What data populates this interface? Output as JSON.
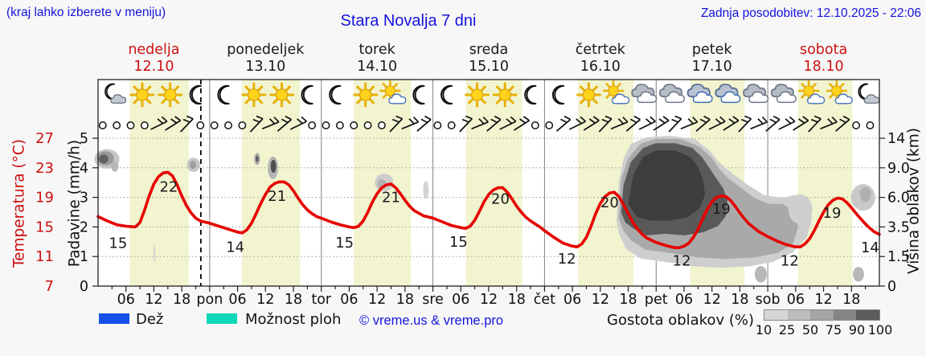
{
  "header": {
    "note": "(kraj lahko izberete v meniju)",
    "updated": "Zadnja posodobitev: 12.10.2025 - 22:06"
  },
  "colors": {
    "accent_blue": "#1414dd",
    "curve_red": "#e60000",
    "label_red": "#cc1111",
    "day_band": "#f1f4ce",
    "grid": "#999999",
    "day_line": "#848484"
  },
  "chart_data": {
    "type": "line",
    "title": "Stara Novalja 7 dni",
    "days": [
      {
        "name": "nedelja",
        "date": "12.10",
        "color": "#cc1111"
      },
      {
        "name": "ponedeljek",
        "date": "13.10",
        "color": "#1a1a1a"
      },
      {
        "name": "torek",
        "date": "14.10",
        "color": "#1a1a1a"
      },
      {
        "name": "sreda",
        "date": "15.10",
        "color": "#1a1a1a"
      },
      {
        "name": "četrtek",
        "date": "16.10",
        "color": "#1a1a1a"
      },
      {
        "name": "petek",
        "date": "17.10",
        "color": "#1a1a1a"
      },
      {
        "name": "sobota",
        "date": "18.10",
        "color": "#cc1111"
      }
    ],
    "axes": {
      "temp": {
        "label": "Temperatura (°C)",
        "ticks": [
          27,
          23,
          19,
          15,
          11,
          7
        ],
        "color": "#cc1111"
      },
      "precip": {
        "label": "Padavine (mm/h)",
        "ticks": [
          5,
          4,
          3,
          2,
          1,
          0
        ]
      },
      "cloud_height": {
        "label": "Višina oblakov (km)",
        "ticks": [
          "14",
          "9.0",
          "6.0",
          "3.5",
          "1.5",
          "0"
        ]
      },
      "hour_ticks": [
        "06",
        "12",
        "18"
      ],
      "day_abbr": [
        "pon",
        "tor",
        "sre",
        "čet",
        "pet",
        "sob"
      ]
    },
    "ylim_precip": [
      0,
      5
    ],
    "temperature_c": [
      [
        0,
        16.4
      ],
      [
        2,
        15.8
      ],
      [
        4,
        15.3
      ],
      [
        6,
        15.1
      ],
      [
        8,
        15.0
      ],
      [
        9,
        15.6
      ],
      [
        10,
        17.3
      ],
      [
        11,
        19.2
      ],
      [
        12,
        20.8
      ],
      [
        13,
        21.8
      ],
      [
        14,
        22.3
      ],
      [
        15,
        22.4
      ],
      [
        16,
        21.9
      ],
      [
        17,
        20.7
      ],
      [
        18,
        19.2
      ],
      [
        19,
        17.9
      ],
      [
        20,
        16.9
      ],
      [
        21,
        16.2
      ],
      [
        22,
        15.8
      ],
      [
        24,
        15.5
      ],
      [
        26,
        15.1
      ],
      [
        28,
        14.7
      ],
      [
        30,
        14.3
      ],
      [
        31,
        14.2
      ],
      [
        32,
        14.6
      ],
      [
        33,
        15.5
      ],
      [
        34,
        16.8
      ],
      [
        35,
        18.2
      ],
      [
        36,
        19.4
      ],
      [
        37,
        20.4
      ],
      [
        38,
        20.9
      ],
      [
        39,
        21.1
      ],
      [
        40,
        21.1
      ],
      [
        41,
        20.7
      ],
      [
        42,
        19.9
      ],
      [
        43,
        18.9
      ],
      [
        44,
        18.0
      ],
      [
        45,
        17.3
      ],
      [
        46,
        16.8
      ],
      [
        47,
        16.4
      ],
      [
        48,
        16.2
      ],
      [
        50,
        15.7
      ],
      [
        52,
        15.3
      ],
      [
        54,
        15.0
      ],
      [
        55,
        14.9
      ],
      [
        56,
        15.1
      ],
      [
        57,
        15.8
      ],
      [
        58,
        17.0
      ],
      [
        59,
        18.4
      ],
      [
        60,
        19.5
      ],
      [
        61,
        20.3
      ],
      [
        62,
        20.7
      ],
      [
        63,
        20.8
      ],
      [
        64,
        20.3
      ],
      [
        65,
        19.5
      ],
      [
        66,
        18.6
      ],
      [
        67,
        17.8
      ],
      [
        68,
        17.2
      ],
      [
        70,
        16.5
      ],
      [
        72,
        16.2
      ],
      [
        74,
        15.7
      ],
      [
        76,
        15.2
      ],
      [
        78,
        14.9
      ],
      [
        79,
        14.8
      ],
      [
        80,
        15.1
      ],
      [
        81,
        15.9
      ],
      [
        82,
        17.1
      ],
      [
        83,
        18.4
      ],
      [
        84,
        19.4
      ],
      [
        85,
        20.0
      ],
      [
        86,
        20.3
      ],
      [
        87,
        20.3
      ],
      [
        88,
        19.7
      ],
      [
        89,
        18.8
      ],
      [
        90,
        17.8
      ],
      [
        91,
        17.0
      ],
      [
        92,
        16.3
      ],
      [
        93,
        15.8
      ],
      [
        94,
        15.4
      ],
      [
        95,
        15.0
      ],
      [
        96,
        14.5
      ],
      [
        98,
        13.6
      ],
      [
        100,
        12.8
      ],
      [
        102,
        12.4
      ],
      [
        103,
        12.3
      ],
      [
        104,
        12.7
      ],
      [
        105,
        13.6
      ],
      [
        106,
        15.1
      ],
      [
        107,
        16.8
      ],
      [
        108,
        18.2
      ],
      [
        109,
        19.1
      ],
      [
        110,
        19.6
      ],
      [
        111,
        19.7
      ],
      [
        112,
        19.1
      ],
      [
        113,
        18.0
      ],
      [
        114,
        16.8
      ],
      [
        115,
        15.6
      ],
      [
        116,
        14.7
      ],
      [
        117,
        14.0
      ],
      [
        118,
        13.5
      ],
      [
        120,
        12.9
      ],
      [
        122,
        12.5
      ],
      [
        124,
        12.2
      ],
      [
        125,
        12.2
      ],
      [
        126,
        12.4
      ],
      [
        127,
        12.8
      ],
      [
        128,
        13.6
      ],
      [
        129,
        14.7
      ],
      [
        130,
        16.1
      ],
      [
        131,
        17.4
      ],
      [
        132,
        18.4
      ],
      [
        133,
        19.0
      ],
      [
        134,
        19.2
      ],
      [
        135,
        19.1
      ],
      [
        136,
        18.6
      ],
      [
        137,
        17.8
      ],
      [
        138,
        16.9
      ],
      [
        139,
        16.1
      ],
      [
        140,
        15.4
      ],
      [
        142,
        14.4
      ],
      [
        144,
        13.7
      ],
      [
        146,
        13.1
      ],
      [
        148,
        12.6
      ],
      [
        150,
        12.3
      ],
      [
        151,
        12.3
      ],
      [
        152,
        12.7
      ],
      [
        153,
        13.4
      ],
      [
        154,
        14.5
      ],
      [
        155,
        15.8
      ],
      [
        156,
        17.0
      ],
      [
        157,
        18.0
      ],
      [
        158,
        18.6
      ],
      [
        159,
        18.9
      ],
      [
        160,
        18.8
      ],
      [
        161,
        18.3
      ],
      [
        162,
        17.6
      ],
      [
        163,
        16.8
      ],
      [
        164,
        16.1
      ],
      [
        165,
        15.4
      ],
      [
        166,
        14.8
      ],
      [
        167,
        14.3
      ],
      [
        168,
        14.0
      ]
    ],
    "temp_labels": [
      [
        "15",
        4.3,
        1.45
      ],
      [
        "22",
        15.2,
        3.35
      ],
      [
        "14",
        29.5,
        1.32
      ],
      [
        "21",
        38.5,
        3.05
      ],
      [
        "15",
        53,
        1.47
      ],
      [
        "21",
        63,
        3.0
      ],
      [
        "15",
        77.5,
        1.5
      ],
      [
        "20",
        86.5,
        2.95
      ],
      [
        "12",
        100.8,
        0.92
      ],
      [
        "20",
        110,
        2.82
      ],
      [
        "12",
        125.5,
        0.86
      ],
      [
        "19",
        134,
        2.61
      ],
      [
        "12",
        148.7,
        0.86
      ],
      [
        "19",
        157.8,
        2.47
      ],
      [
        "14",
        166,
        1.3
      ]
    ],
    "icons": [
      [
        "moon-cloud",
        "sun",
        "sun",
        "moon"
      ],
      [
        "moon",
        "sun",
        "sun",
        "moon"
      ],
      [
        "moon",
        "sun",
        "sun-cloud",
        "moon"
      ],
      [
        "moon",
        "sun",
        "sun",
        "moon"
      ],
      [
        "moon",
        "sun",
        "sun-cloud",
        "clouds"
      ],
      [
        "clouds",
        "clouds-blue",
        "clouds-blue",
        "clouds"
      ],
      [
        "clouds",
        "sun-cloud",
        "sun-cloud",
        "moon-cloud"
      ]
    ],
    "wind": [
      "o",
      "o",
      "o",
      "o",
      "b",
      "b",
      "b",
      "o",
      "o",
      "o",
      "o",
      "b",
      "b",
      "b",
      "b",
      "o",
      "o",
      "o",
      "o",
      "o",
      "o",
      "b",
      "b",
      "b",
      "o",
      "o",
      "b",
      "b",
      "b",
      "b",
      "b",
      "o",
      "o",
      "b",
      "b",
      "b",
      "b",
      "b",
      "b",
      "b",
      "b",
      "b",
      "b",
      "b",
      "b",
      "b",
      "b",
      "b",
      "b",
      "b",
      "b",
      "b",
      "b",
      "b",
      "o",
      "o"
    ],
    "daylight_bands": [
      [
        6.8,
        19.5
      ],
      [
        6.9,
        19.4
      ],
      [
        7.0,
        19.3
      ],
      [
        7.1,
        19.2
      ],
      [
        7.2,
        19.1
      ],
      [
        7.3,
        19.0
      ],
      [
        6.5,
        18.2
      ]
    ],
    "update_line_hour": 22.1,
    "clouds": {
      "blobs": [
        [
          1.9,
          4.3,
          2.7,
          0.33,
          "#c6c6c6"
        ],
        [
          1.6,
          4.32,
          1.8,
          0.24,
          "#9a9a9a"
        ],
        [
          1.2,
          4.3,
          1.0,
          0.15,
          "#5f5f5f"
        ],
        [
          3.6,
          4.05,
          0.8,
          0.18,
          "#b8b8b8"
        ],
        [
          12.1,
          1.1,
          0.16,
          0.3,
          "#cfcfcf"
        ],
        [
          20.5,
          4.1,
          1.4,
          0.24,
          "#c6c6c6"
        ],
        [
          20.4,
          4.1,
          0.7,
          0.14,
          "#9f9f9f"
        ],
        [
          34.2,
          4.3,
          0.6,
          0.2,
          "#a8a8a8"
        ],
        [
          34.2,
          4.3,
          0.3,
          0.11,
          "#606060"
        ],
        [
          37.6,
          4.0,
          1.1,
          0.38,
          "#b3b3b3"
        ],
        [
          37.7,
          4.05,
          0.6,
          0.22,
          "#4f4f4f"
        ],
        [
          61.5,
          3.5,
          2.0,
          0.3,
          "#cdcdcd"
        ],
        [
          61.0,
          3.45,
          1.0,
          0.16,
          "#b2b2b2"
        ],
        [
          70.5,
          3.25,
          0.6,
          0.3,
          "#d4d4d4"
        ],
        [
          142.5,
          0.4,
          1.3,
          0.28,
          "#b8b8b8"
        ],
        [
          151.0,
          2.6,
          2.6,
          0.5,
          "#cfcfcf"
        ],
        [
          164.5,
          3.0,
          2.6,
          0.45,
          "#c9c9c9"
        ],
        [
          165.0,
          3.1,
          1.2,
          0.25,
          "#b0b0b0"
        ],
        [
          163.5,
          0.4,
          1.2,
          0.25,
          "#b8b8b8"
        ]
      ],
      "masses": [
        {
          "color": "#cecece",
          "pts": [
            [
              112,
              2.2
            ],
            [
              112.5,
              3.5
            ],
            [
              113.5,
              4.3
            ],
            [
              115,
              4.75
            ],
            [
              118,
              4.95
            ],
            [
              123,
              5.0
            ],
            [
              128,
              4.9
            ],
            [
              131,
              4.55
            ],
            [
              133,
              4.15
            ],
            [
              136,
              3.75
            ],
            [
              139,
              3.4
            ],
            [
              143,
              3.0
            ],
            [
              147,
              2.9
            ],
            [
              150,
              3.0
            ],
            [
              152,
              2.8
            ],
            [
              153,
              2.3
            ],
            [
              152,
              1.7
            ],
            [
              149,
              1.2
            ],
            [
              145,
              0.9
            ],
            [
              140,
              0.75
            ],
            [
              134,
              0.7
            ],
            [
              128,
              0.75
            ],
            [
              122,
              0.9
            ],
            [
              117,
              1.0
            ],
            [
              114,
              1.3
            ],
            [
              112.5,
              1.8
            ]
          ]
        },
        {
          "color": "#a9a9a9",
          "pts": [
            [
              112.5,
              2.3
            ],
            [
              113,
              3.6
            ],
            [
              114.5,
              4.3
            ],
            [
              117,
              4.75
            ],
            [
              120,
              4.9
            ],
            [
              125,
              4.9
            ],
            [
              129,
              4.65
            ],
            [
              131.5,
              4.3
            ],
            [
              133,
              3.95
            ],
            [
              135,
              3.6
            ],
            [
              138,
              3.25
            ],
            [
              141,
              2.9
            ],
            [
              144,
              2.7
            ],
            [
              147,
              2.7
            ],
            [
              149,
              2.5
            ],
            [
              150,
              2.0
            ],
            [
              149,
              1.5
            ],
            [
              146,
              1.2
            ],
            [
              141,
              1.05
            ],
            [
              135,
              1.0
            ],
            [
              129,
              1.05
            ],
            [
              123,
              1.2
            ],
            [
              118,
              1.3
            ],
            [
              115,
              1.6
            ],
            [
              113.5,
              1.9
            ]
          ]
        },
        {
          "color": "#595959",
          "pts": [
            [
              113,
              2.5
            ],
            [
              113.5,
              3.4
            ],
            [
              115,
              4.15
            ],
            [
              117.5,
              4.6
            ],
            [
              120,
              4.75
            ],
            [
              124,
              4.75
            ],
            [
              127.5,
              4.6
            ],
            [
              129.5,
              4.3
            ],
            [
              131,
              3.95
            ],
            [
              132.5,
              3.6
            ],
            [
              134,
              3.25
            ],
            [
              134.8,
              2.9
            ],
            [
              134.5,
              2.4
            ],
            [
              133,
              2.1
            ],
            [
              130,
              1.9
            ],
            [
              126,
              1.8
            ],
            [
              122,
              1.85
            ],
            [
              118,
              1.8
            ],
            [
              115.5,
              2.0
            ],
            [
              113.8,
              2.2
            ]
          ]
        },
        {
          "color": "#3e3e3e",
          "pts": [
            [
              114.5,
              2.8
            ],
            [
              115.5,
              3.7
            ],
            [
              117.5,
              4.3
            ],
            [
              120,
              4.5
            ],
            [
              124,
              4.5
            ],
            [
              127,
              4.3
            ],
            [
              128.5,
              4.0
            ],
            [
              129.5,
              3.6
            ],
            [
              130,
              3.1
            ],
            [
              129,
              2.7
            ],
            [
              126.5,
              2.4
            ],
            [
              123,
              2.3
            ],
            [
              119,
              2.3
            ],
            [
              116.2,
              2.4
            ]
          ]
        }
      ]
    },
    "legend": {
      "rain": "Dež",
      "rain_color": "#1450e8",
      "showers": "Možnost ploh",
      "showers_color": "#0fd9b9",
      "copyright": "© vreme.us & vreme.pro",
      "cloud_density_label": "Gostota oblakov (%)",
      "density_ticks": [
        "10",
        "25",
        "50",
        "75",
        "90",
        "100"
      ],
      "density_colors": [
        "#d6d6d6",
        "#bdbdbd",
        "#a4a4a4",
        "#858585",
        "#5c5c5c"
      ]
    }
  }
}
